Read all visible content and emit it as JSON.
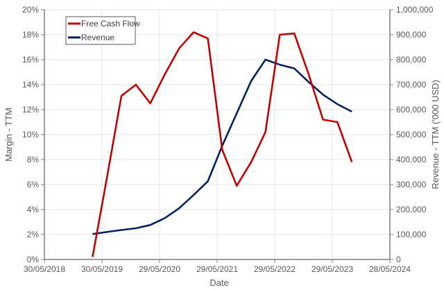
{
  "chart_data": {
    "type": "line",
    "title": "",
    "xlabel": "Date",
    "ylabel": "Margin - TTM",
    "y2label": "Revenue - TTM ('000 USD)",
    "x_tick_labels": [
      "30/05/2018",
      "30/05/2019",
      "29/05/2020",
      "29/05/2021",
      "29/05/2022",
      "29/05/2023",
      "28/05/2024"
    ],
    "y_tick_labels": [
      "0%",
      "2%",
      "4%",
      "6%",
      "8%",
      "10%",
      "12%",
      "14%",
      "16%",
      "18%",
      "20%"
    ],
    "y2_tick_labels": [
      "0",
      "100,000",
      "200,000",
      "300,000",
      "400,000",
      "500,000",
      "600,000",
      "700,000",
      "800,000",
      "900,000",
      "1,000,000"
    ],
    "ylim": [
      0,
      20
    ],
    "y2lim": [
      0,
      1000000
    ],
    "grid": true,
    "legend_position": "upper-left",
    "x": [
      "2019-03-31",
      "2019-06-30",
      "2019-09-30",
      "2019-12-31",
      "2020-03-31",
      "2020-06-30",
      "2020-09-30",
      "2020-12-31",
      "2021-03-31",
      "2021-06-30",
      "2021-09-30",
      "2021-12-31",
      "2022-03-31",
      "2022-06-30",
      "2022-09-30",
      "2022-12-31",
      "2023-03-31",
      "2023-06-30",
      "2023-09-30"
    ],
    "series": [
      {
        "name": "Free Cash Flow",
        "axis": "left",
        "unit": "%",
        "color": "#C00000",
        "values": [
          0.2,
          6.5,
          13.1,
          14.0,
          12.5,
          14.8,
          16.9,
          18.2,
          17.7,
          8.8,
          5.9,
          7.8,
          10.2,
          18.0,
          18.1,
          14.8,
          11.2,
          11.0,
          7.8
        ]
      },
      {
        "name": "Revenue",
        "axis": "right",
        "unit": "'000 USD",
        "color": "#002060",
        "values": [
          102000,
          110000,
          118000,
          125000,
          138000,
          165000,
          205000,
          258000,
          313000,
          455000,
          585000,
          715000,
          800000,
          780000,
          765000,
          710000,
          660000,
          622000,
          592000
        ]
      }
    ]
  },
  "legend": {
    "items": [
      {
        "label": "Free Cash Flow",
        "color": "#C00000"
      },
      {
        "label": "Revenue",
        "color": "#002060"
      }
    ]
  },
  "axes": {
    "x_title": "Date",
    "y_left_title": "Margin - TTM",
    "y_right_title": "Revenue - TTM ('000 USD)"
  }
}
